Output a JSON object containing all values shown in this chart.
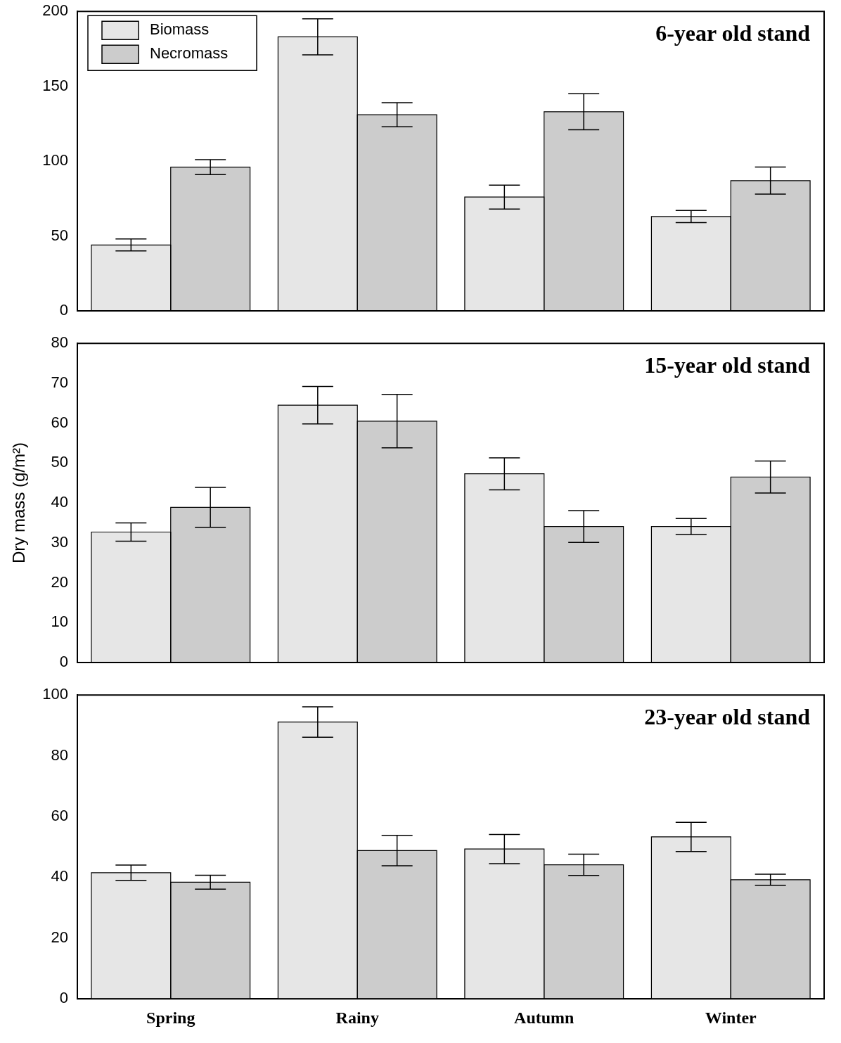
{
  "chart_data": [
    {
      "type": "bar",
      "title": "6-year old stand",
      "categories": [
        null,
        null,
        null,
        null
      ],
      "tick_labels": "y",
      "legend": "top left",
      "ylim": [
        0,
        200
      ],
      "yticks": [
        0,
        50,
        100,
        150,
        200
      ],
      "series": [
        {
          "name": "Biomass",
          "color": "#e6e6e6",
          "values": [
            44,
            183,
            76,
            63
          ],
          "errors": [
            4,
            12,
            8,
            4
          ]
        },
        {
          "name": "Necromass",
          "color": "#cccccc",
          "values": [
            96,
            131,
            133,
            87
          ],
          "errors": [
            5,
            8,
            12,
            9
          ]
        }
      ]
    },
    {
      "type": "bar",
      "title": "15-year old stand",
      "ylabel": "Dry mass (g/m²)",
      "categories": [
        null,
        null,
        null,
        null
      ],
      "tick_labels": "y",
      "ylim": [
        0,
        80
      ],
      "yticks": [
        0,
        10,
        20,
        30,
        40,
        50,
        60,
        70,
        80
      ],
      "series": [
        {
          "color": "#e6e6e6",
          "values": [
            32.7,
            64.5,
            47.3,
            34.1
          ],
          "errors": [
            2.3,
            4.7,
            4,
            2
          ]
        },
        {
          "color": "#cccccc",
          "values": [
            38.9,
            60.5,
            34.1,
            46.5
          ],
          "errors": [
            5,
            6.7,
            4,
            4
          ]
        }
      ]
    },
    {
      "type": "bar",
      "title": "23-year old stand",
      "categories": [
        "Spring",
        "Rainy",
        "Autumn",
        "Winter"
      ],
      "ylim": [
        0,
        100
      ],
      "yticks": [
        0,
        20,
        40,
        60,
        80,
        100
      ],
      "series": [
        {
          "color": "#e6e6e6",
          "values": [
            41.5,
            91.1,
            49.3,
            53.3
          ],
          "errors": [
            2.5,
            5,
            4.8,
            4.8
          ]
        },
        {
          "color": "#cccccc",
          "values": [
            38.4,
            48.8,
            44.1,
            39.2
          ],
          "errors": [
            2.3,
            5,
            3.5,
            1.8
          ]
        }
      ]
    }
  ]
}
